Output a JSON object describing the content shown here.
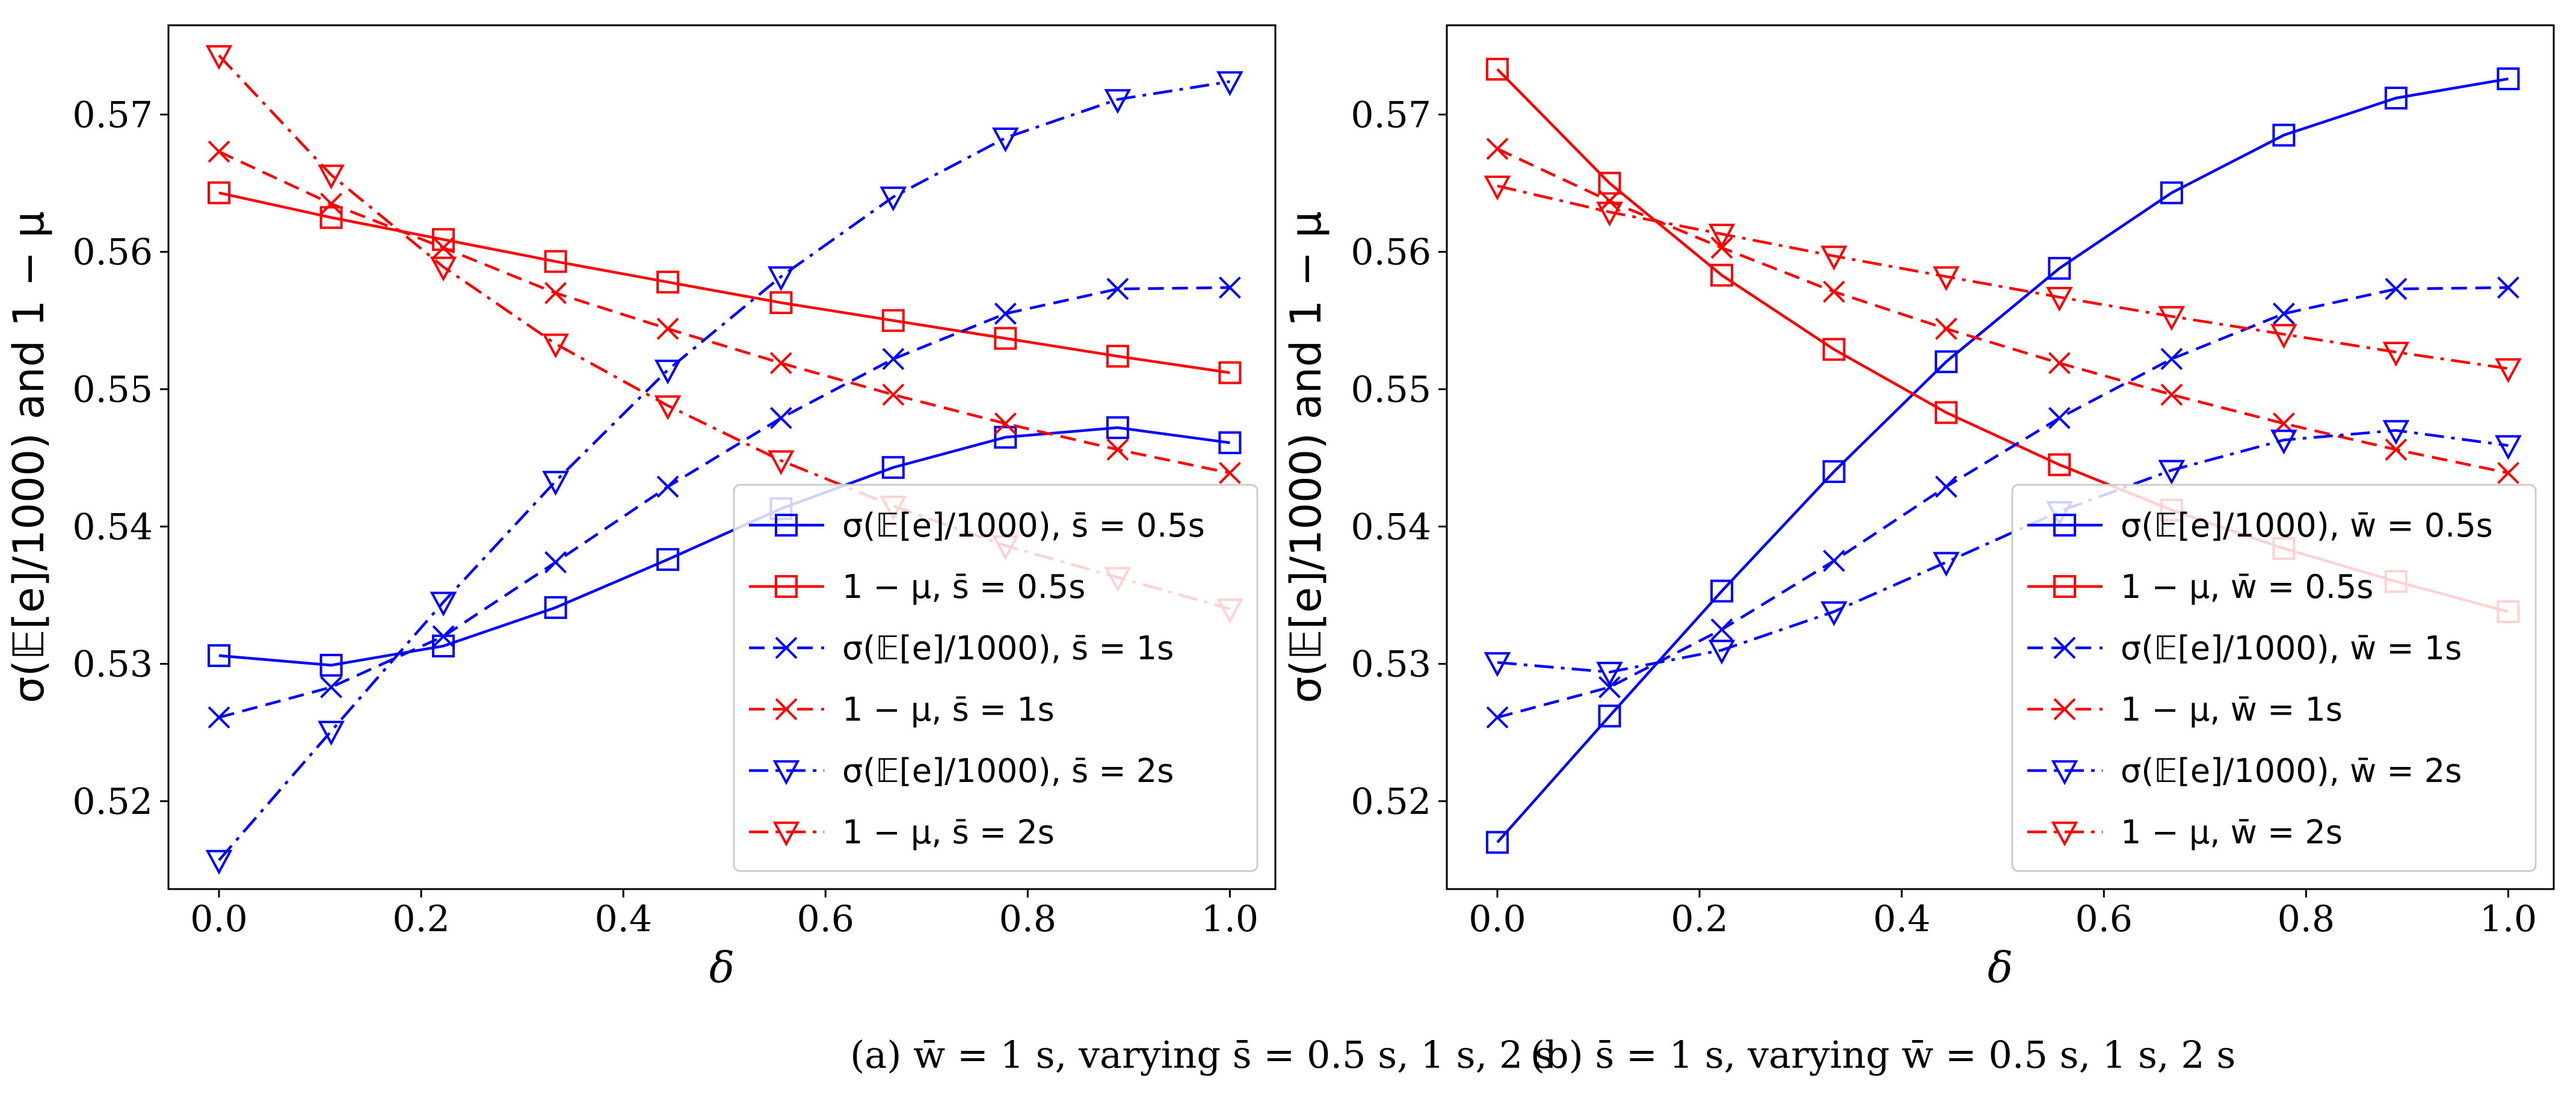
{
  "chart_data": [
    {
      "type": "line",
      "panel_label": "(a)",
      "caption": "(a) w̄ = 1 s, varying s̄ = 0.5 s, 1 s, 2 s",
      "xlabel": "δ",
      "ylabel": "σ(𝔼[e]/1000) and 1 − μ",
      "xlim": [
        -0.05,
        1.045
      ],
      "ylim": [
        0.5136,
        0.5765
      ],
      "xticks": [
        "0.0",
        "0.2",
        "0.4",
        "0.6",
        "0.8",
        "1.0"
      ],
      "yticks": [
        "0.52",
        "0.53",
        "0.54",
        "0.55",
        "0.56",
        "0.57"
      ],
      "legend_position": "lower-right",
      "x": [
        0.0,
        0.111,
        0.222,
        0.333,
        0.444,
        0.556,
        0.667,
        0.778,
        0.889,
        1.0
      ],
      "series": [
        {
          "name": "σ(𝔼[e]/1000), s̄ = 0.5s",
          "color": "#0000ff",
          "dash": "solid",
          "marker": "square",
          "values": [
            0.5306,
            0.5299,
            0.5313,
            0.5341,
            0.5376,
            0.5413,
            0.5443,
            0.5465,
            0.5472,
            0.5461
          ]
        },
        {
          "name": "1 − μ, s̄ = 0.5s",
          "color": "#ff0000",
          "dash": "solid",
          "marker": "square",
          "values": [
            0.5643,
            0.5625,
            0.5609,
            0.5593,
            0.5578,
            0.5563,
            0.555,
            0.5537,
            0.5524,
            0.5512
          ]
        },
        {
          "name": "σ(𝔼[e]/1000), s̄ = 1s",
          "color": "#0000ff",
          "dash": "dashed",
          "marker": "x",
          "values": [
            0.5261,
            0.5283,
            0.532,
            0.5374,
            0.5429,
            0.5479,
            0.5522,
            0.5555,
            0.5573,
            0.5574
          ]
        },
        {
          "name": "1 − μ, s̄ = 1s",
          "color": "#ff0000",
          "dash": "dashed",
          "marker": "x",
          "values": [
            0.5673,
            0.5635,
            0.5603,
            0.557,
            0.5544,
            0.5519,
            0.5496,
            0.5475,
            0.5456,
            0.5439
          ]
        },
        {
          "name": "σ(𝔼[e]/1000), s̄ = 2s",
          "color": "#0000ff",
          "dash": "dashdot",
          "marker": "triangle-down",
          "values": [
            0.5157,
            0.5251,
            0.5345,
            0.5433,
            0.5514,
            0.5582,
            0.564,
            0.5683,
            0.5711,
            0.5724
          ]
        },
        {
          "name": "1 − μ, s̄ = 2s",
          "color": "#ff0000",
          "dash": "dashdot",
          "marker": "triangle-down",
          "values": [
            0.5743,
            0.5656,
            0.5589,
            0.5533,
            0.5488,
            0.5448,
            0.5415,
            0.5386,
            0.5363,
            0.534
          ]
        }
      ]
    },
    {
      "type": "line",
      "panel_label": "(b)",
      "caption": "(b) s̄ = 1 s, varying w̄ = 0.5 s, 1 s, 2 s",
      "xlabel": "δ",
      "ylabel": "σ(𝔼[e]/1000) and 1 − μ",
      "xlim": [
        -0.05,
        1.045
      ],
      "ylim": [
        0.5136,
        0.5765
      ],
      "xticks": [
        "0.0",
        "0.2",
        "0.4",
        "0.6",
        "0.8",
        "1.0"
      ],
      "yticks": [
        "0.52",
        "0.53",
        "0.54",
        "0.55",
        "0.56",
        "0.57"
      ],
      "legend_position": "lower-right",
      "x": [
        0.0,
        0.111,
        0.222,
        0.333,
        0.444,
        0.556,
        0.667,
        0.778,
        0.889,
        1.0
      ],
      "series": [
        {
          "name": "σ(𝔼[e]/1000), w̄ = 0.5s",
          "color": "#0000ff",
          "dash": "solid",
          "marker": "square",
          "values": [
            0.517,
            0.5262,
            0.5353,
            0.544,
            0.552,
            0.5588,
            0.5643,
            0.5685,
            0.5712,
            0.5726
          ]
        },
        {
          "name": "1 − μ, w̄ = 0.5s",
          "color": "#ff0000",
          "dash": "solid",
          "marker": "square",
          "values": [
            0.5733,
            0.565,
            0.5583,
            0.5529,
            0.5483,
            0.5445,
            0.5412,
            0.5384,
            0.536,
            0.5338
          ]
        },
        {
          "name": "σ(𝔼[e]/1000), w̄ = 1s",
          "color": "#0000ff",
          "dash": "dashed",
          "marker": "x",
          "values": [
            0.5261,
            0.5283,
            0.5325,
            0.5375,
            0.5429,
            0.5479,
            0.5522,
            0.5555,
            0.5573,
            0.5574
          ]
        },
        {
          "name": "1 − μ, w̄ = 1s",
          "color": "#ff0000",
          "dash": "dashed",
          "marker": "x",
          "values": [
            0.5675,
            0.5637,
            0.5603,
            0.5571,
            0.5544,
            0.5519,
            0.5496,
            0.5475,
            0.5456,
            0.5439
          ]
        },
        {
          "name": "σ(𝔼[e]/1000), w̄ = 2s",
          "color": "#0000ff",
          "dash": "dashdot",
          "marker": "triangle-down",
          "values": [
            0.5301,
            0.5294,
            0.531,
            0.5338,
            0.5374,
            0.5411,
            0.5441,
            0.5463,
            0.547,
            0.5459
          ]
        },
        {
          "name": "1 − μ, w̄ = 2s",
          "color": "#ff0000",
          "dash": "dashdot",
          "marker": "triangle-down",
          "values": [
            0.5648,
            0.5629,
            0.5613,
            0.5597,
            0.5582,
            0.5567,
            0.5553,
            0.554,
            0.5527,
            0.5515
          ]
        }
      ]
    }
  ]
}
